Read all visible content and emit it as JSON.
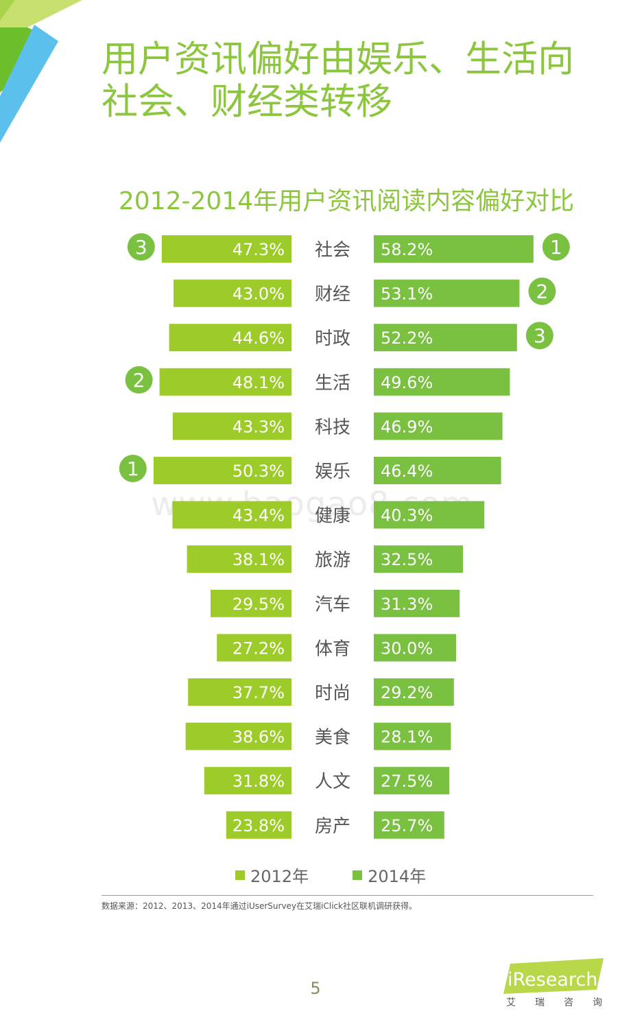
{
  "page": {
    "title_line1": "用户资讯偏好由娱乐、生活向",
    "title_line2": "社会、财经类转移",
    "watermark": "www.baogao8.com",
    "source_note": "数据来源：2012、2013、2014年通过iUserSurvey在艾瑞iClick社区联机调研获得。",
    "page_number": "5",
    "logo_text": "iResearch",
    "logo_sub": [
      "艾",
      "瑞",
      "咨",
      "询"
    ]
  },
  "colors": {
    "bar_2012": "#9dcc2a",
    "bar_2014": "#7ac142",
    "title": "#8cc63f",
    "corner_dark": "#6cbf2a",
    "corner_light": "#c8e070",
    "corner_blue": "#5bc0ec"
  },
  "chart_data": {
    "type": "bar",
    "title": "2012-2014年用户资讯阅读内容偏好对比",
    "categories": [
      "社会",
      "财经",
      "时政",
      "生活",
      "科技",
      "娱乐",
      "健康",
      "旅游",
      "汽车",
      "体育",
      "时尚",
      "美食",
      "人文",
      "房产"
    ],
    "series": [
      {
        "name": "2012年",
        "values": [
          47.3,
          43.0,
          44.6,
          48.1,
          43.3,
          50.3,
          43.4,
          38.1,
          29.5,
          27.2,
          37.7,
          38.6,
          31.8,
          23.8
        ],
        "labels": [
          "47.3%",
          "43.0%",
          "44.6%",
          "48.1%",
          "43.3%",
          "50.3%",
          "43.4%",
          "38.1%",
          "29.5%",
          "27.2%",
          "37.7%",
          "38.6%",
          "31.8%",
          "23.8%"
        ],
        "rank_badges": [
          {
            "category": "娱乐",
            "rank": "1"
          },
          {
            "category": "生活",
            "rank": "2"
          },
          {
            "category": "社会",
            "rank": "3"
          }
        ]
      },
      {
        "name": "2014年",
        "values": [
          58.2,
          53.1,
          52.2,
          49.6,
          46.9,
          46.4,
          40.3,
          32.5,
          31.3,
          30.0,
          29.2,
          28.1,
          27.5,
          25.7
        ],
        "labels": [
          "58.2%",
          "53.1%",
          "52.2%",
          "49.6%",
          "46.9%",
          "46.4%",
          "40.3%",
          "32.5%",
          "31.3%",
          "30.0%",
          "29.2%",
          "28.1%",
          "27.5%",
          "25.7%"
        ],
        "rank_badges": [
          {
            "category": "社会",
            "rank": "1"
          },
          {
            "category": "财经",
            "rank": "2"
          },
          {
            "category": "时政",
            "rank": "3"
          }
        ]
      }
    ],
    "legend": [
      "2012年",
      "2014年"
    ],
    "legend_position": "bottom"
  }
}
